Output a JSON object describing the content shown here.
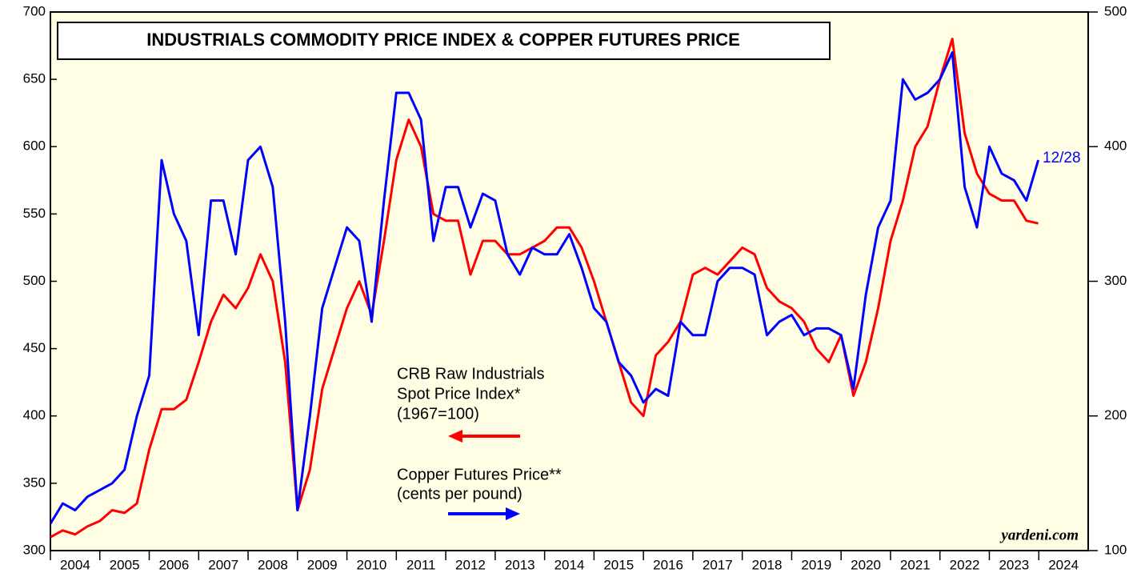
{
  "chart_data": {
    "type": "line",
    "title": "INDUSTRIALS COMMODITY PRICE INDEX & COPPER FUTURES PRICE",
    "annotations": [
      "CRB Raw Industrials",
      "Spot Price Index*",
      "(1967=100)",
      "Copper Futures Price**",
      "(cents per pound)",
      "12/28",
      "yardeni.com"
    ],
    "x": [
      2004,
      2004.25,
      2004.5,
      2004.75,
      2005,
      2005.25,
      2005.5,
      2005.75,
      2006,
      2006.25,
      2006.5,
      2006.75,
      2007,
      2007.25,
      2007.5,
      2007.75,
      2008,
      2008.25,
      2008.5,
      2008.75,
      2009,
      2009.25,
      2009.5,
      2009.75,
      2010,
      2010.25,
      2010.5,
      2010.75,
      2011,
      2011.25,
      2011.5,
      2011.75,
      2012,
      2012.25,
      2012.5,
      2012.75,
      2013,
      2013.25,
      2013.5,
      2013.75,
      2014,
      2014.25,
      2014.5,
      2014.75,
      2015,
      2015.25,
      2015.5,
      2015.75,
      2016,
      2016.25,
      2016.5,
      2016.75,
      2017,
      2017.25,
      2017.5,
      2017.75,
      2018,
      2018.25,
      2018.5,
      2018.75,
      2019,
      2019.25,
      2019.5,
      2019.75,
      2020,
      2020.25,
      2020.5,
      2020.75,
      2021,
      2021.25,
      2021.5,
      2021.75,
      2022,
      2022.25,
      2022.5,
      2022.75,
      2023,
      2023.25,
      2023.5,
      2023.75,
      2023.99
    ],
    "series": [
      {
        "name": "CRB Raw Industrials Spot Price Index",
        "color": "#ff0000",
        "axis": "y",
        "values": [
          310,
          315,
          312,
          318,
          322,
          330,
          328,
          335,
          375,
          405,
          405,
          412,
          440,
          470,
          490,
          480,
          495,
          520,
          500,
          440,
          330,
          360,
          420,
          450,
          480,
          500,
          475,
          530,
          590,
          620,
          600,
          550,
          545,
          545,
          505,
          530,
          530,
          520,
          520,
          525,
          530,
          540,
          540,
          525,
          500,
          470,
          440,
          410,
          400,
          445,
          455,
          470,
          505,
          510,
          505,
          515,
          525,
          520,
          495,
          485,
          480,
          470,
          450,
          440,
          460,
          415,
          440,
          480,
          530,
          560,
          600,
          615,
          650,
          680,
          610,
          580,
          565,
          560,
          560,
          545,
          543
        ]
      },
      {
        "name": "Copper Futures Price",
        "color": "#0000ff",
        "axis": "y2",
        "values": [
          120,
          135,
          130,
          140,
          145,
          150,
          160,
          200,
          230,
          390,
          350,
          330,
          260,
          360,
          360,
          320,
          390,
          400,
          370,
          270,
          130,
          200,
          280,
          310,
          340,
          330,
          270,
          360,
          440,
          440,
          420,
          330,
          370,
          370,
          340,
          365,
          360,
          320,
          305,
          325,
          320,
          320,
          335,
          310,
          280,
          270,
          240,
          230,
          210,
          220,
          215,
          270,
          260,
          260,
          300,
          310,
          310,
          305,
          260,
          270,
          275,
          260,
          265,
          265,
          260,
          220,
          290,
          340,
          360,
          450,
          435,
          440,
          450,
          470,
          370,
          340,
          400,
          380,
          375,
          360,
          390
        ]
      }
    ],
    "xlim": [
      2004,
      2025
    ],
    "xticks": [
      {
        "value": 2004.5,
        "label": "2004"
      },
      {
        "value": 2005.5,
        "label": "2005"
      },
      {
        "value": 2006.5,
        "label": "2006"
      },
      {
        "value": 2007.5,
        "label": "2007"
      },
      {
        "value": 2008.5,
        "label": "2008"
      },
      {
        "value": 2009.5,
        "label": "2009"
      },
      {
        "value": 2010.5,
        "label": "2010"
      },
      {
        "value": 2011.5,
        "label": "2011"
      },
      {
        "value": 2012.5,
        "label": "2012"
      },
      {
        "value": 2013.5,
        "label": "2013"
      },
      {
        "value": 2014.5,
        "label": "2014"
      },
      {
        "value": 2015.5,
        "label": "2015"
      },
      {
        "value": 2016.5,
        "label": "2016"
      },
      {
        "value": 2017.5,
        "label": "2017"
      },
      {
        "value": 2018.5,
        "label": "2018"
      },
      {
        "value": 2019.5,
        "label": "2019"
      },
      {
        "value": 2020.5,
        "label": "2020"
      },
      {
        "value": 2021.5,
        "label": "2021"
      },
      {
        "value": 2022.5,
        "label": "2022"
      },
      {
        "value": 2023.5,
        "label": "2023"
      },
      {
        "value": 2024.5,
        "label": "2024"
      }
    ],
    "ylim": [
      300,
      700
    ],
    "yticks": [
      300,
      350,
      400,
      450,
      500,
      550,
      600,
      650,
      700
    ],
    "y2lim": [
      100,
      500
    ],
    "y2ticks": [
      100,
      200,
      300,
      400,
      500
    ]
  }
}
